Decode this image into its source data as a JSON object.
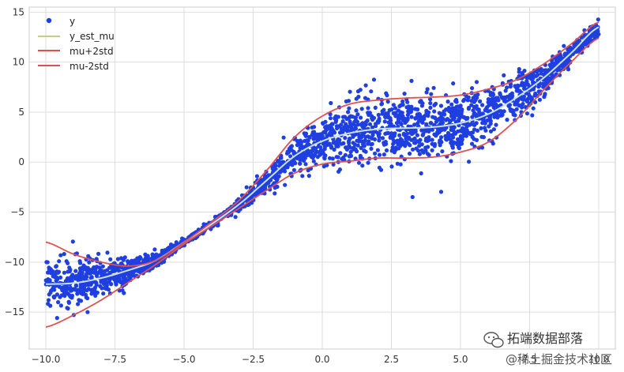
{
  "chart_data": {
    "type": "scatter",
    "title": "",
    "xlabel": "",
    "ylabel": "",
    "xlim": [
      -10.6,
      10.6
    ],
    "ylim": [
      -18.7,
      15.5
    ],
    "xticks": [
      -10.0,
      -7.5,
      -5.0,
      -2.5,
      0.0,
      2.5,
      5.0,
      7.5,
      10.0
    ],
    "xtick_labels": [
      "−10.0",
      "−7.5",
      "−5.0",
      "−2.5",
      "0.0",
      "2.5",
      "5.0",
      "7.5",
      "10.0"
    ],
    "yticks": [
      -15,
      -10,
      -5,
      0,
      5,
      10,
      15
    ],
    "ytick_labels": [
      "−15",
      "−10",
      "−5",
      "0",
      "5",
      "10",
      "15"
    ],
    "grid": true,
    "legend_position": "top-left",
    "series": [
      {
        "name": "y",
        "kind": "scatter",
        "color": "#1f3fe0",
        "x": [
          -10,
          -9,
          -8,
          -7,
          -6,
          -5,
          -4,
          -3,
          -2,
          -1,
          0,
          1,
          2,
          3,
          4,
          5,
          6,
          7,
          8,
          9,
          10
        ],
        "y": [
          -12.2,
          -12.1,
          -11.6,
          -10.8,
          -9.8,
          -8.0,
          -6.2,
          -4.2,
          -1.8,
          0.6,
          2.1,
          2.9,
          3.3,
          3.4,
          3.5,
          3.9,
          4.8,
          6.4,
          8.4,
          10.9,
          13.5
        ],
        "spread": [
          2.3,
          2.2,
          1.8,
          1.2,
          0.6,
          0.3,
          0.3,
          0.5,
          1.0,
          1.6,
          2.1,
          2.6,
          2.9,
          3.0,
          3.0,
          2.9,
          2.6,
          2.0,
          1.4,
          0.9,
          0.7
        ]
      },
      {
        "name": "y_est_mu",
        "kind": "line",
        "color": "#c8e2ee",
        "legend_color": "#c5cc8c",
        "x": [
          -10,
          -9,
          -8,
          -7,
          -6,
          -5,
          -4,
          -3,
          -2,
          -1,
          0,
          1,
          2,
          3,
          4,
          5,
          6,
          7,
          8,
          9,
          10
        ],
        "y": [
          -12.2,
          -12.1,
          -11.6,
          -10.8,
          -9.8,
          -8.0,
          -6.2,
          -4.2,
          -1.8,
          0.6,
          2.1,
          2.9,
          3.3,
          3.4,
          3.5,
          3.9,
          4.8,
          6.4,
          8.4,
          10.9,
          13.5
        ]
      },
      {
        "name": "mu+2std",
        "kind": "line",
        "color": "#e05050",
        "x": [
          -10,
          -9,
          -8,
          -7,
          -6,
          -5,
          -4,
          -3,
          -2,
          -1,
          0,
          1,
          2,
          3,
          4,
          5,
          6,
          7,
          8,
          9,
          10
        ],
        "y": [
          -8.0,
          -9.2,
          -10.0,
          -10.4,
          -9.8,
          -8.0,
          -6.0,
          -3.8,
          -0.8,
          2.5,
          4.6,
          5.8,
          6.2,
          6.4,
          6.5,
          6.7,
          7.3,
          8.2,
          9.8,
          11.8,
          14.0
        ]
      },
      {
        "name": "mu-2std",
        "kind": "line",
        "color": "#e05050",
        "x": [
          -10,
          -9,
          -8,
          -7,
          -6,
          -5,
          -4,
          -3,
          -2,
          -1,
          0,
          1,
          2,
          3,
          4,
          5,
          6,
          7,
          8,
          9,
          10
        ],
        "y": [
          -16.5,
          -15.3,
          -13.8,
          -12.0,
          -10.2,
          -8.2,
          -6.4,
          -4.6,
          -2.8,
          -1.1,
          -0.2,
          0.1,
          0.4,
          0.4,
          0.5,
          1.0,
          2.0,
          4.2,
          7.2,
          10.0,
          12.4
        ]
      }
    ]
  },
  "watermark": {
    "line1": "拓端数据部落",
    "line2": "@稀土掘金技术社区"
  }
}
